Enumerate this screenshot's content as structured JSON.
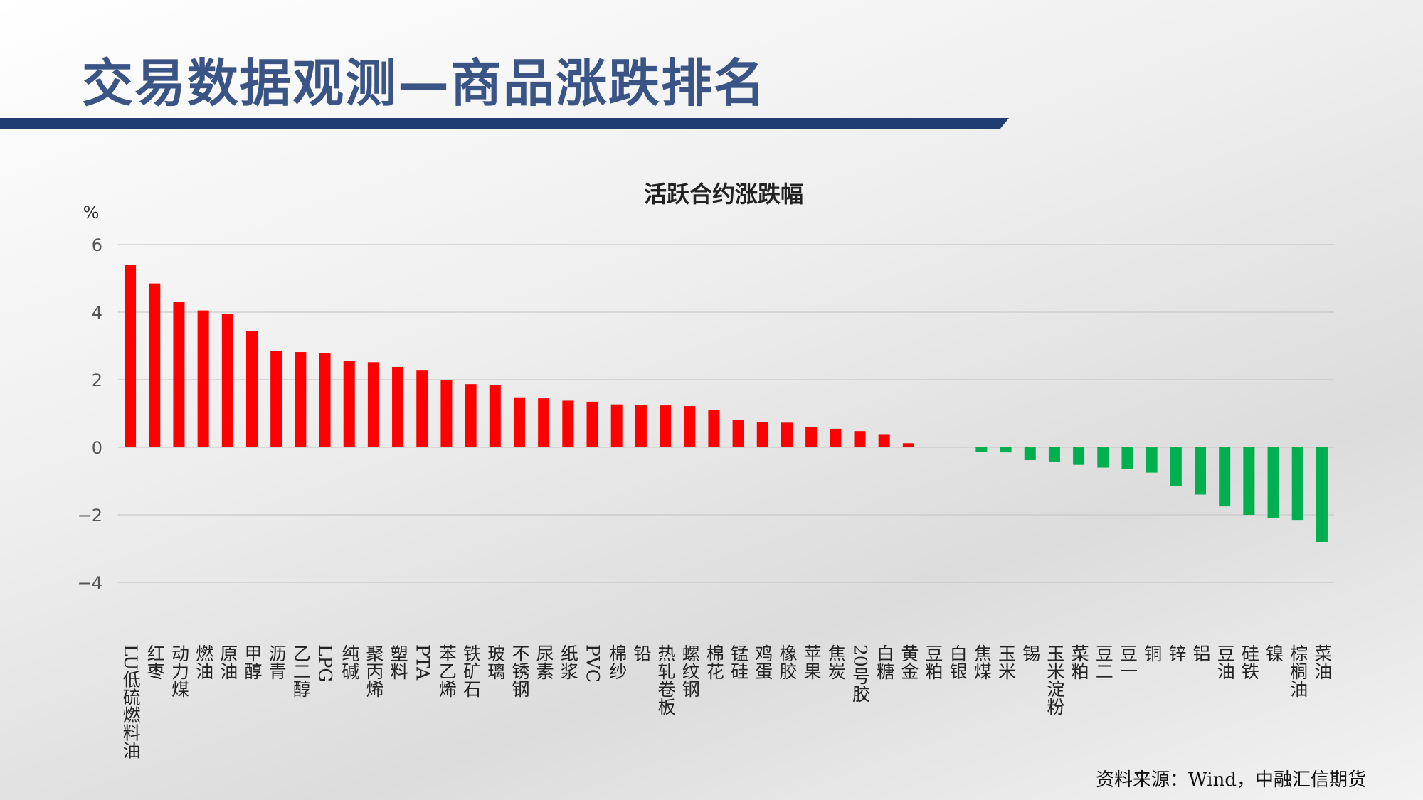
{
  "header": {
    "title": "交易数据观测—商品涨跌排名"
  },
  "chart_data": {
    "type": "bar",
    "title": "活跃合约涨跌幅",
    "y_unit": "%",
    "categories": [
      "LU低硫燃料油",
      "红枣",
      "动力煤",
      "燃油",
      "原油",
      "甲醇",
      "沥青",
      "乙二醇",
      "LPG",
      "纯碱",
      "聚丙烯",
      "塑料",
      "PTA",
      "苯乙烯",
      "铁矿石",
      "玻璃",
      "不锈钢",
      "尿素",
      "纸浆",
      "PVC",
      "棉纱",
      "铅",
      "热轧卷板",
      "螺纹钢",
      "棉花",
      "锰硅",
      "鸡蛋",
      "橡胶",
      "苹果",
      "焦炭",
      "20号胶",
      "白糖",
      "黄金",
      "豆粕",
      "白银",
      "焦煤",
      "玉米",
      "锡",
      "玉米淀粉",
      "菜粕",
      "豆二",
      "豆一",
      "铜",
      "锌",
      "铝",
      "豆油",
      "硅铁",
      "镍",
      "棕榈油",
      "菜油"
    ],
    "values": [
      5.4,
      4.85,
      4.3,
      4.05,
      3.95,
      3.45,
      2.85,
      2.82,
      2.8,
      2.55,
      2.52,
      2.38,
      2.27,
      2.0,
      1.87,
      1.84,
      1.48,
      1.45,
      1.38,
      1.35,
      1.27,
      1.25,
      1.24,
      1.22,
      1.1,
      0.8,
      0.75,
      0.73,
      0.6,
      0.55,
      0.48,
      0.37,
      0.12,
      0,
      0,
      -0.13,
      -0.15,
      -0.38,
      -0.42,
      -0.52,
      -0.6,
      -0.65,
      -0.75,
      -1.15,
      -1.4,
      -1.75,
      -2.0,
      -2.1,
      -2.15,
      -2.8
    ],
    "colors": {
      "positive": "#ff0000",
      "negative": "#00b050"
    },
    "ylim": [
      -4,
      6
    ],
    "yticks": [
      {
        "value": -4,
        "label": "−4"
      },
      {
        "value": -2,
        "label": "−2"
      },
      0,
      2,
      4,
      6
    ],
    "grid": true,
    "source": "资料来源：Wind，中融汇信期货"
  }
}
